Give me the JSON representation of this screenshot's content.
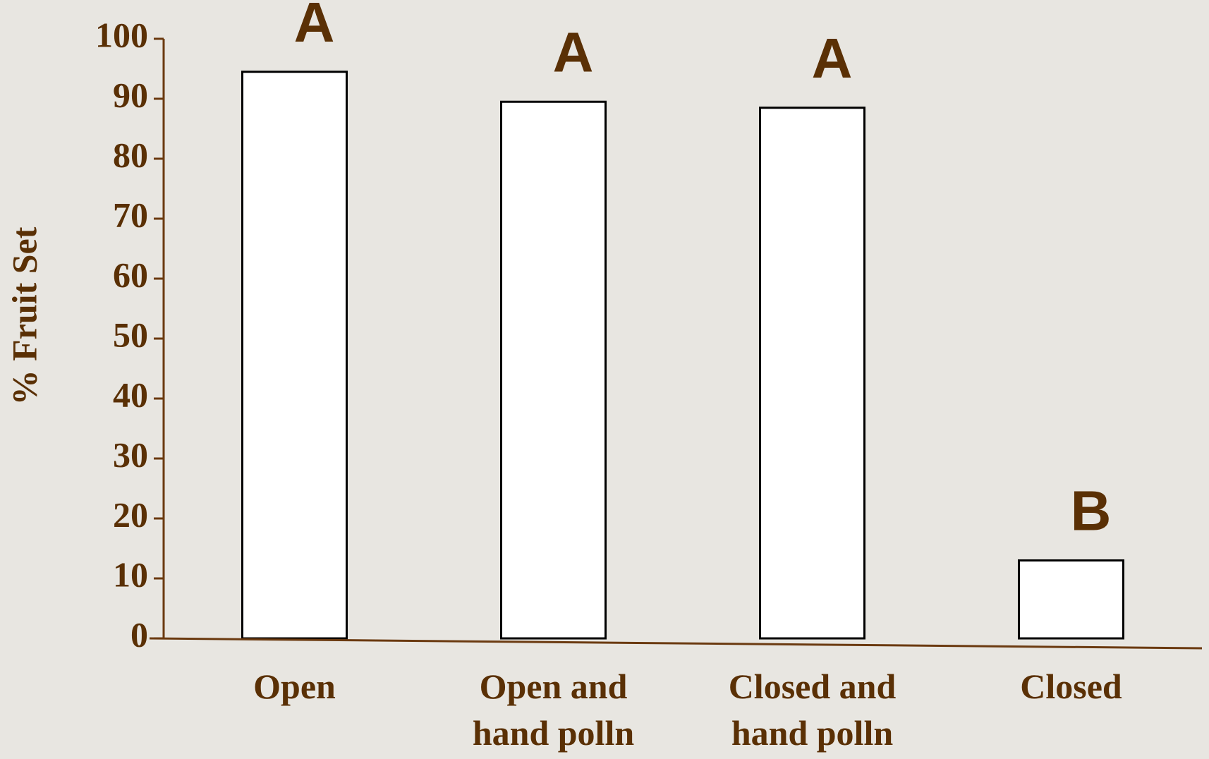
{
  "chart_data": {
    "type": "bar",
    "y_label": "% Fruit Set",
    "categories": [
      "Open",
      "Open and\nhand polln",
      "Closed and\nhand polln",
      "Closed"
    ],
    "values": [
      94.5,
      89.5,
      88.5,
      13
    ],
    "annotations": [
      "A",
      "A",
      "A",
      "B"
    ],
    "color": "#ffffff",
    "ylim": [
      0,
      100
    ],
    "yticks": [
      0,
      10,
      20,
      30,
      40,
      50,
      60,
      70,
      80,
      90,
      100
    ]
  }
}
